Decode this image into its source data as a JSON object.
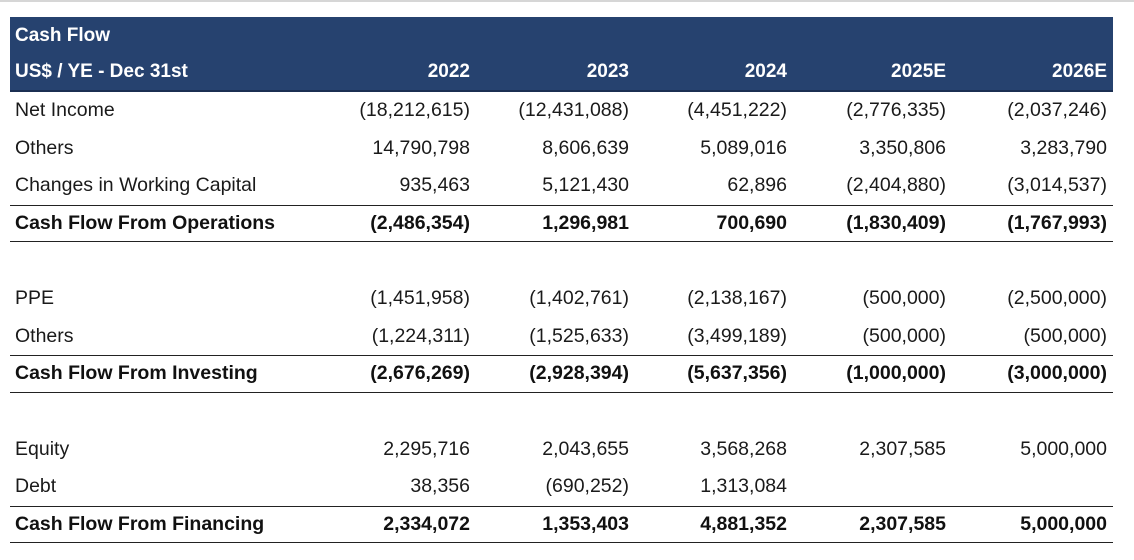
{
  "title": "Cash Flow",
  "header": {
    "label": "US$ / YE - Dec 31st",
    "years": [
      "2022",
      "2023",
      "2024",
      "2025E",
      "2026E"
    ]
  },
  "operations": {
    "rows": [
      {
        "label": "Net Income",
        "values": [
          "(18,212,615)",
          "(12,431,088)",
          "(4,451,222)",
          "(2,776,335)",
          "(2,037,246)"
        ]
      },
      {
        "label": "Others",
        "values": [
          "14,790,798",
          "8,606,639",
          "5,089,016",
          "3,350,806",
          "3,283,790"
        ]
      },
      {
        "label": "Changes in Working Capital",
        "values": [
          "935,463",
          "5,121,430",
          "62,896",
          "(2,404,880)",
          "(3,014,537)"
        ]
      }
    ],
    "total": {
      "label": "Cash Flow From Operations",
      "values": [
        "(2,486,354)",
        "1,296,981",
        "700,690",
        "(1,830,409)",
        "(1,767,993)"
      ]
    }
  },
  "investing": {
    "rows": [
      {
        "label": "PPE",
        "values": [
          "(1,451,958)",
          "(1,402,761)",
          "(2,138,167)",
          "(500,000)",
          "(2,500,000)"
        ]
      },
      {
        "label": "Others",
        "values": [
          "(1,224,311)",
          "(1,525,633)",
          "(3,499,189)",
          "(500,000)",
          "(500,000)"
        ]
      }
    ],
    "total": {
      "label": "Cash Flow From Investing",
      "values": [
        "(2,676,269)",
        "(2,928,394)",
        "(5,637,356)",
        "(1,000,000)",
        "(3,000,000)"
      ]
    }
  },
  "financing": {
    "rows": [
      {
        "label": "Equity",
        "values": [
          "2,295,716",
          "2,043,655",
          "3,568,268",
          "2,307,585",
          "5,000,000"
        ]
      },
      {
        "label": "Debt",
        "values": [
          "38,356",
          "(690,252)",
          "1,313,084",
          "",
          ""
        ]
      }
    ],
    "total": {
      "label": "Cash Flow From Financing",
      "values": [
        "2,334,072",
        "1,353,403",
        "4,881,352",
        "2,307,585",
        "5,000,000"
      ]
    }
  },
  "colors": {
    "header_bg": "#26426f",
    "header_text": "#ffffff",
    "body_text": "#1a1a1a"
  }
}
